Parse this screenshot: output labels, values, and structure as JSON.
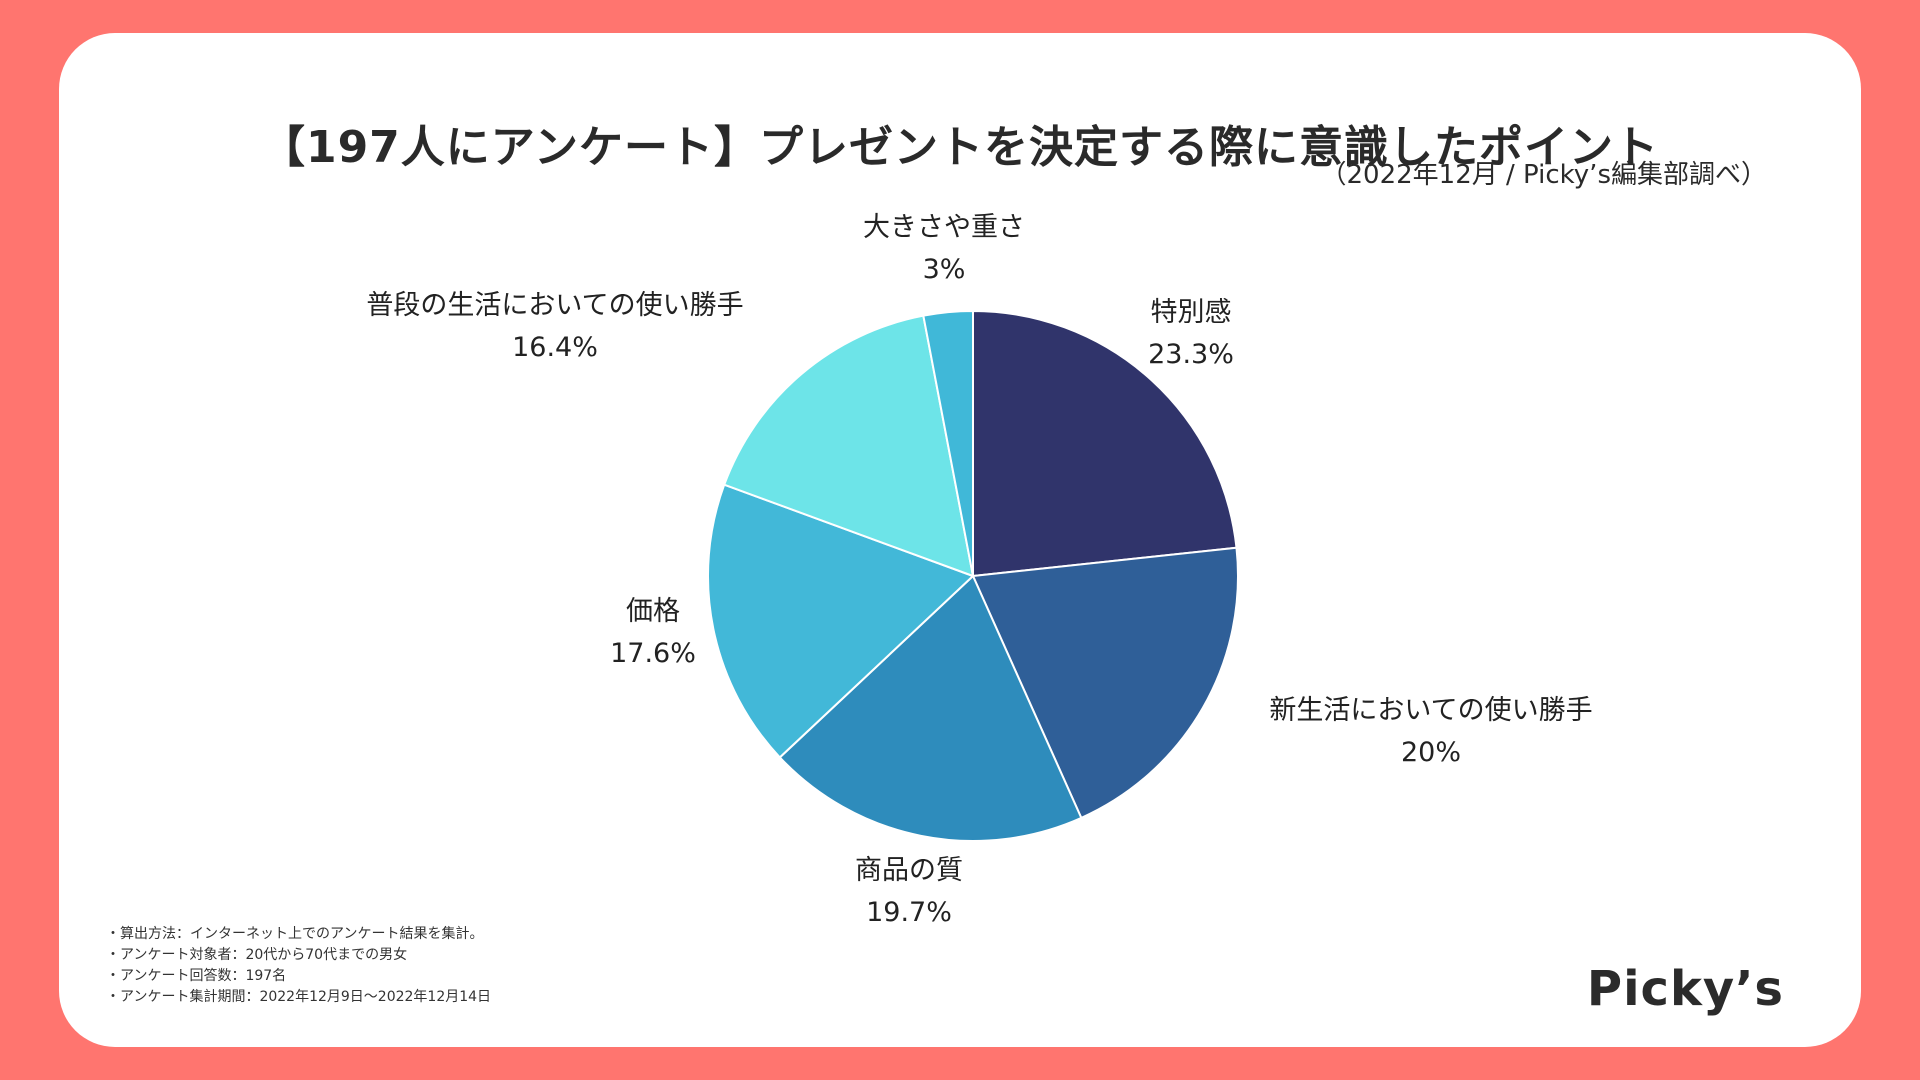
{
  "header": {
    "title": "【197人にアンケート】プレゼントを決定する際に意識したポイント",
    "source": "（2022年12月 / Picky’s編集部調べ）"
  },
  "notes": [
    "・算出方法：インターネット上でのアンケート結果を集計。",
    "・アンケート対象者：20代から70代までの男女",
    "・アンケート回答数：197名",
    "・アンケート集計期間：2022年12月9日〜2022年12月14日"
  ],
  "logo": "Picky’s",
  "chart_data": {
    "type": "pie",
    "title": "【197人にアンケート】プレゼントを決定する際に意識したポイント",
    "start_angle_deg": 0,
    "direction": "clockwise",
    "slices": [
      {
        "label": "特別感",
        "value": 23.3,
        "value_label": "23.3%",
        "color": "#30346b"
      },
      {
        "label": "新生活においての使い勝手",
        "value": 20,
        "value_label": "20%",
        "color": "#2f5f98"
      },
      {
        "label": "商品の質",
        "value": 19.7,
        "value_label": "19.7%",
        "color": "#2e8cbc"
      },
      {
        "label": "価格",
        "value": 17.6,
        "value_label": "17.6%",
        "color": "#42b8d8"
      },
      {
        "label": "普段の生活においての使い勝手",
        "value": 16.4,
        "value_label": "16.4%",
        "color": "#6de4e8"
      },
      {
        "label": "大きさや重さ",
        "value": 3,
        "value_label": "3%",
        "color": "#40b8d8"
      }
    ]
  }
}
